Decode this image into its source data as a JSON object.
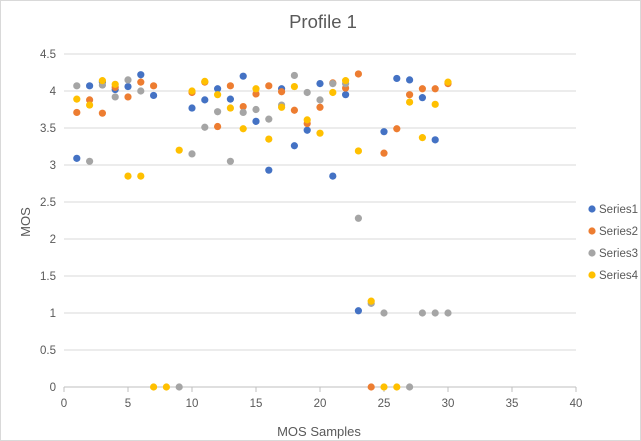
{
  "chart_data": {
    "type": "scatter",
    "title": "Profile 1",
    "xlabel": "MOS Samples",
    "ylabel": "MOS",
    "xlim": [
      0,
      40
    ],
    "ylim": [
      0,
      4.5
    ],
    "x_ticks": [
      0,
      5,
      10,
      15,
      20,
      25,
      30,
      35,
      40
    ],
    "y_ticks": [
      0,
      0.5,
      1,
      1.5,
      2,
      2.5,
      3,
      3.5,
      4,
      4.5
    ],
    "x_tick_labels": [
      "0",
      "5",
      "10",
      "15",
      "20",
      "25",
      "30",
      "35",
      "40"
    ],
    "y_tick_labels": [
      "0",
      "0.5",
      "1",
      "1.5",
      "2",
      "2.5",
      "3",
      "3.5",
      "4",
      "4.5"
    ],
    "grid": "horizontal",
    "legend_position": "right",
    "series": [
      {
        "name": "Series1",
        "color": "#4472c4",
        "points": [
          [
            1,
            3.09
          ],
          [
            2,
            4.07
          ],
          [
            3,
            4.12
          ],
          [
            4,
            4.02
          ],
          [
            5,
            4.06
          ],
          [
            6,
            4.22
          ],
          [
            7,
            3.94
          ],
          [
            10,
            3.77
          ],
          [
            11,
            3.88
          ],
          [
            12,
            4.03
          ],
          [
            13,
            3.89
          ],
          [
            14,
            4.2
          ],
          [
            15,
            3.59
          ],
          [
            16,
            2.93
          ],
          [
            17,
            4.03
          ],
          [
            18,
            3.26
          ],
          [
            19,
            3.47
          ],
          [
            20,
            4.1
          ],
          [
            21,
            2.85
          ],
          [
            22,
            3.95
          ],
          [
            23,
            1.03
          ],
          [
            25,
            3.45
          ],
          [
            26,
            4.17
          ],
          [
            27,
            4.15
          ],
          [
            28,
            3.91
          ],
          [
            29,
            3.34
          ]
        ]
      },
      {
        "name": "Series2",
        "color": "#ed7d31",
        "points": [
          [
            1,
            3.71
          ],
          [
            2,
            3.88
          ],
          [
            3,
            3.7
          ],
          [
            4,
            4.05
          ],
          [
            5,
            3.92
          ],
          [
            6,
            4.12
          ],
          [
            7,
            4.07
          ],
          [
            10,
            3.98
          ],
          [
            11,
            4.12
          ],
          [
            12,
            3.52
          ],
          [
            13,
            4.07
          ],
          [
            14,
            3.79
          ],
          [
            15,
            3.96
          ],
          [
            16,
            4.07
          ],
          [
            17,
            3.99
          ],
          [
            18,
            3.74
          ],
          [
            19,
            3.56
          ],
          [
            20,
            3.78
          ],
          [
            21,
            4.11
          ],
          [
            22,
            4.04
          ],
          [
            23,
            4.23
          ],
          [
            24,
            0
          ],
          [
            25,
            3.16
          ],
          [
            26,
            3.49
          ],
          [
            27,
            3.95
          ],
          [
            28,
            4.03
          ],
          [
            29,
            4.03
          ],
          [
            30,
            4.1
          ]
        ]
      },
      {
        "name": "Series3",
        "color": "#a5a5a5",
        "points": [
          [
            1,
            4.07
          ],
          [
            2,
            3.05
          ],
          [
            3,
            4.08
          ],
          [
            4,
            3.92
          ],
          [
            5,
            4.15
          ],
          [
            6,
            4.0
          ],
          [
            9,
            0
          ],
          [
            10,
            3.15
          ],
          [
            11,
            3.51
          ],
          [
            12,
            3.72
          ],
          [
            13,
            3.05
          ],
          [
            14,
            3.71
          ],
          [
            15,
            3.75
          ],
          [
            16,
            3.62
          ],
          [
            17,
            3.81
          ],
          [
            18,
            4.21
          ],
          [
            19,
            3.98
          ],
          [
            20,
            3.88
          ],
          [
            21,
            4.1
          ],
          [
            22,
            4.1
          ],
          [
            23,
            2.28
          ],
          [
            24,
            1.13
          ],
          [
            25,
            1.0
          ],
          [
            27,
            0
          ],
          [
            28,
            1.0
          ],
          [
            29,
            1.0
          ],
          [
            30,
            1.0
          ]
        ]
      },
      {
        "name": "Series4",
        "color": "#ffc000",
        "points": [
          [
            1,
            3.89
          ],
          [
            2,
            3.81
          ],
          [
            3,
            4.14
          ],
          [
            4,
            4.09
          ],
          [
            5,
            2.85
          ],
          [
            6,
            2.85
          ],
          [
            7,
            0
          ],
          [
            8,
            0
          ],
          [
            9,
            3.2
          ],
          [
            10,
            4.0
          ],
          [
            11,
            4.13
          ],
          [
            12,
            3.95
          ],
          [
            13,
            3.77
          ],
          [
            14,
            3.49
          ],
          [
            15,
            4.03
          ],
          [
            16,
            3.35
          ],
          [
            17,
            3.78
          ],
          [
            18,
            4.06
          ],
          [
            19,
            3.61
          ],
          [
            20,
            3.43
          ],
          [
            21,
            3.98
          ],
          [
            22,
            4.14
          ],
          [
            23,
            3.19
          ],
          [
            24,
            1.16
          ],
          [
            25,
            0
          ],
          [
            26,
            0
          ],
          [
            27,
            3.85
          ],
          [
            28,
            3.37
          ],
          [
            29,
            3.82
          ],
          [
            30,
            4.12
          ]
        ]
      }
    ]
  }
}
